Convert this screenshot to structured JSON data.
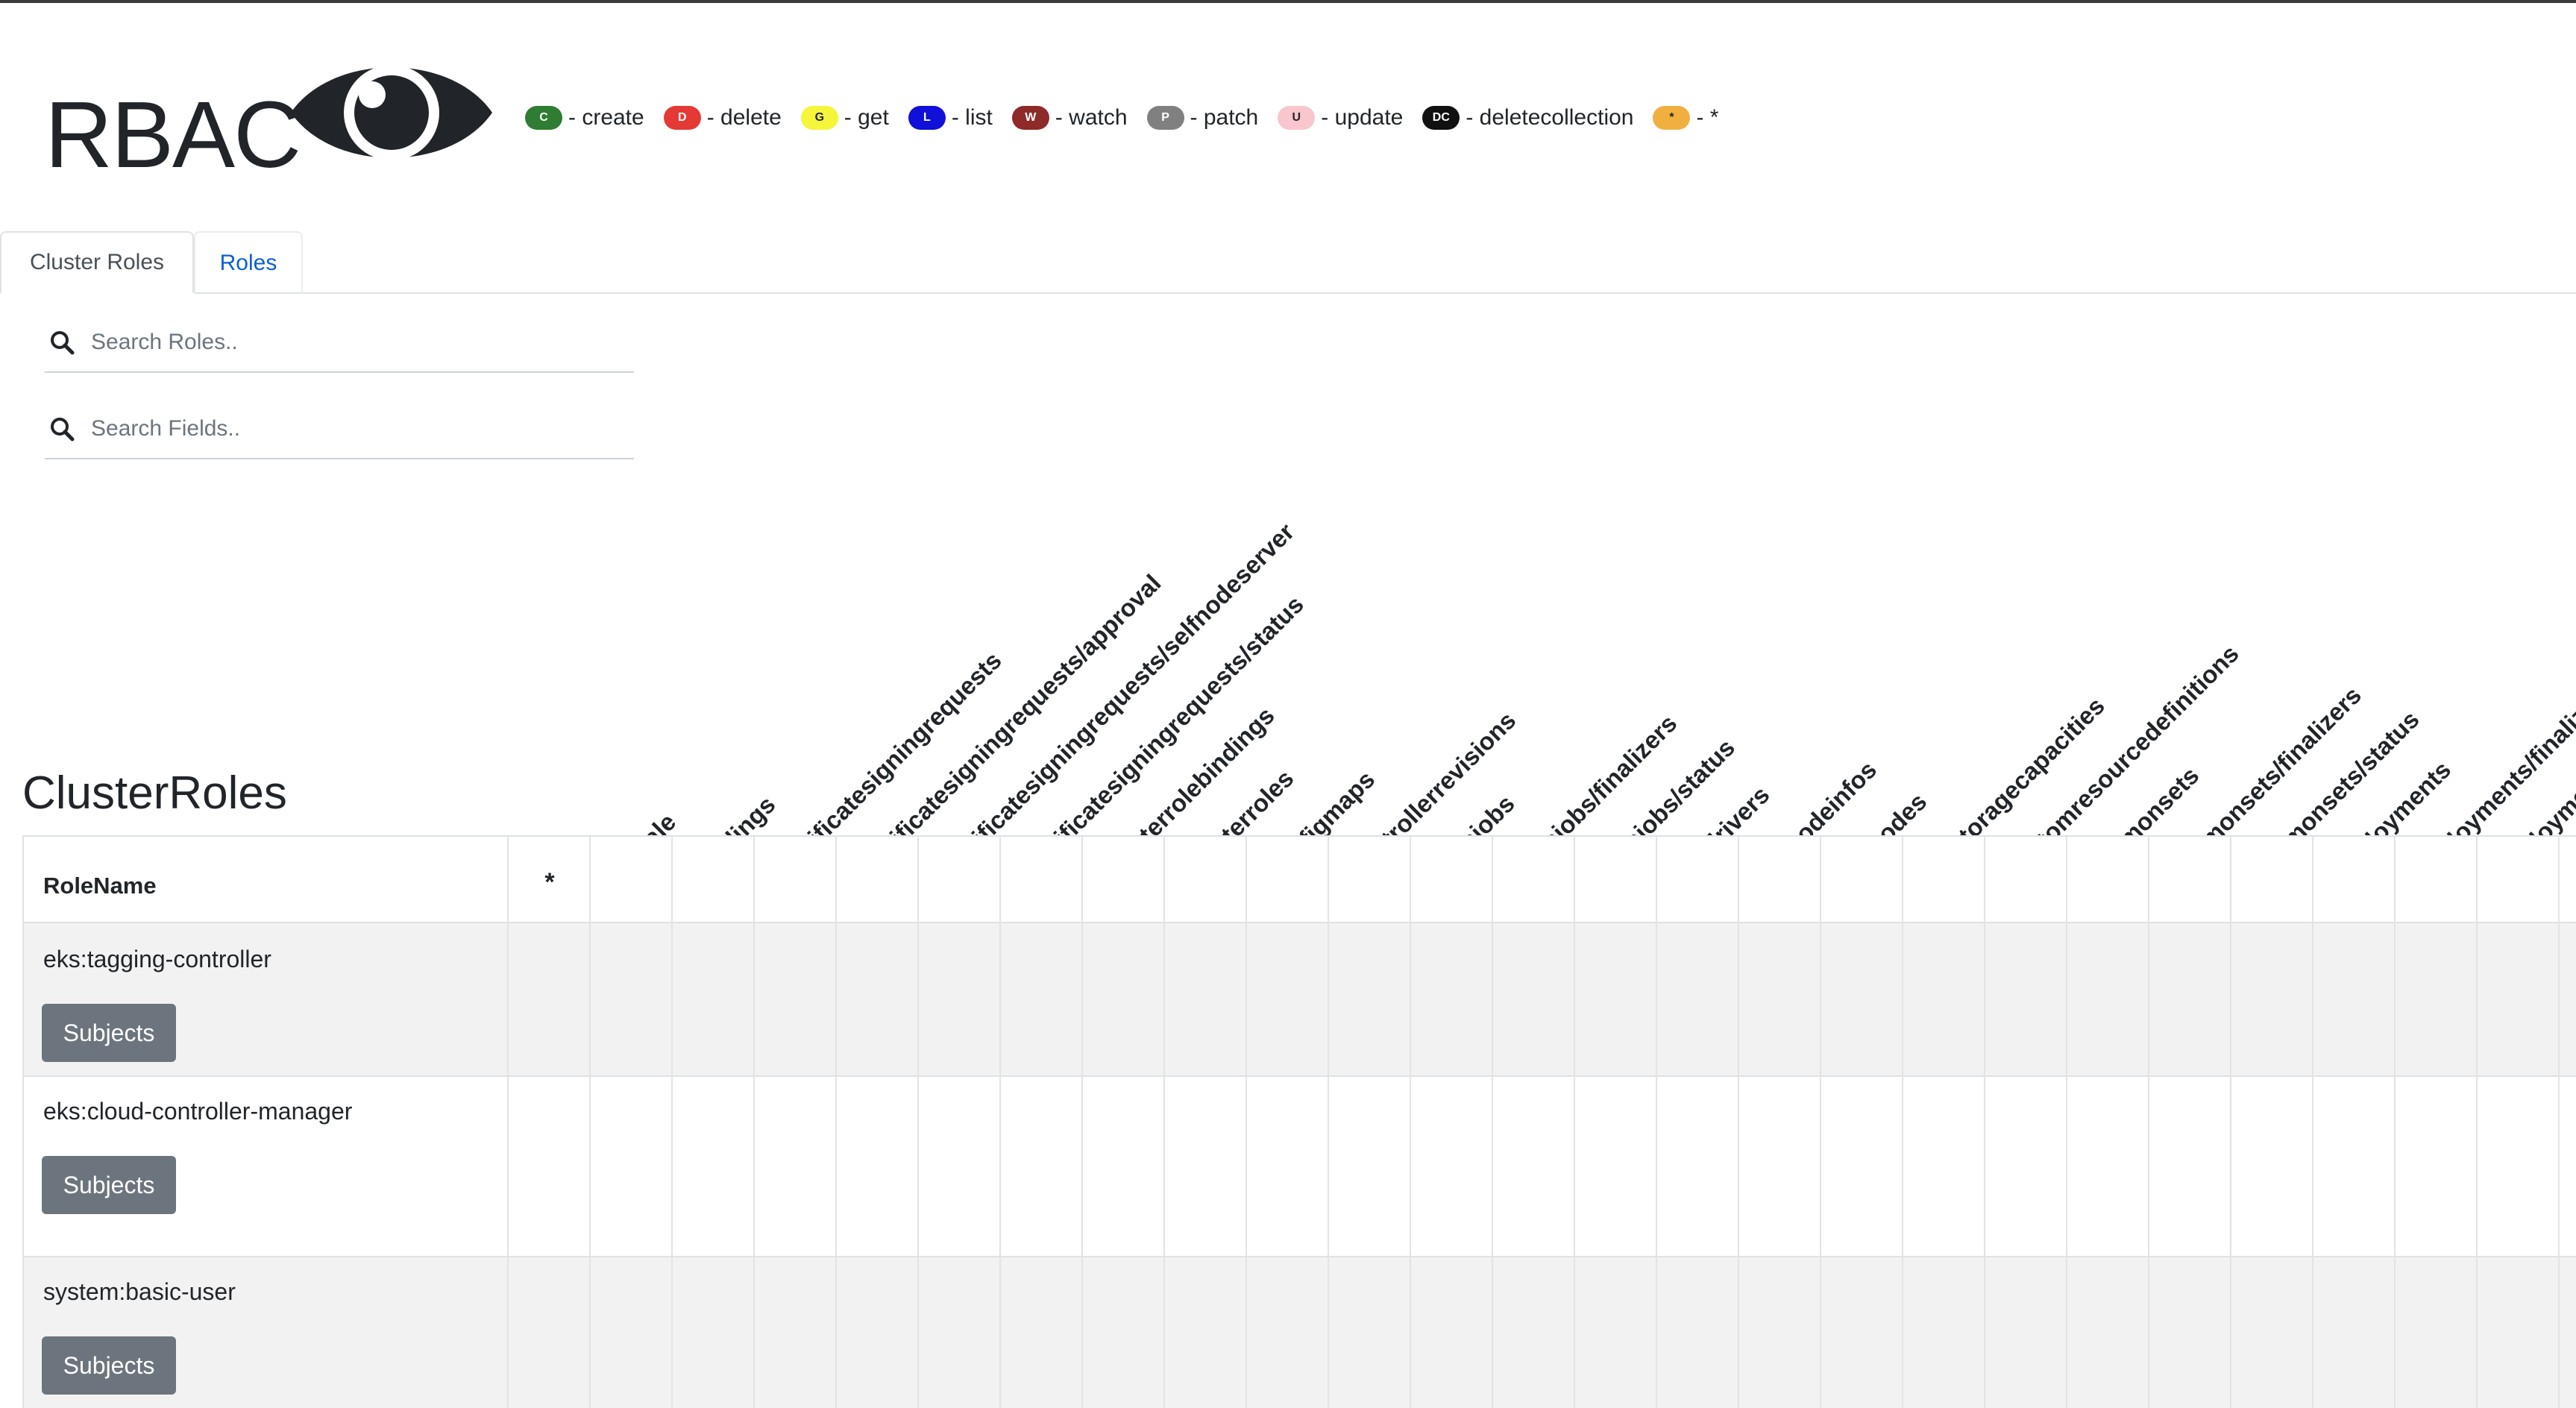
{
  "app": {
    "title": "RBAC"
  },
  "legend": [
    {
      "code": "C",
      "label": "- create",
      "bg": "#2e7d32",
      "fg": "#ffffff"
    },
    {
      "code": "D",
      "label": "- delete",
      "bg": "#e53935",
      "fg": "#ffffff"
    },
    {
      "code": "G",
      "label": "- get",
      "bg": "#f5f53a",
      "fg": "#212529"
    },
    {
      "code": "L",
      "label": "- list",
      "bg": "#1010d8",
      "fg": "#ffffff"
    },
    {
      "code": "W",
      "label": "- watch",
      "bg": "#8e2a2a",
      "fg": "#ffffff"
    },
    {
      "code": "P",
      "label": "- patch",
      "bg": "#808080",
      "fg": "#ffffff"
    },
    {
      "code": "U",
      "label": "- update",
      "bg": "#f8c6cc",
      "fg": "#212529"
    },
    {
      "code": "DC",
      "label": "- deletecollection",
      "bg": "#111111",
      "fg": "#ffffff"
    },
    {
      "code": "*",
      "label": "- *",
      "bg": "#f0b040",
      "fg": "#212529"
    }
  ],
  "tabs": [
    {
      "label": "Cluster Roles",
      "active": true
    },
    {
      "label": "Roles",
      "active": false
    }
  ],
  "search": {
    "roles_placeholder": "Search Roles..",
    "fields_placeholder": "Search Fields.."
  },
  "section": {
    "title": "ClusterRoles"
  },
  "table": {
    "rolename_header": "RoleName",
    "star_header": "*",
    "columns": [
      "*/scale",
      "bindings",
      "certificatesigningrequests",
      "certificatesigningrequests/approval",
      "certificatesigningrequests/selfnodeserver",
      "certificatesigningrequests/status",
      "clusterrolebindings",
      "clusterroles",
      "configmaps",
      "controllerrevisions",
      "cronjobs",
      "cronjobs/finalizers",
      "cronjobs/status",
      "csidrivers",
      "csinodeinfos",
      "csinodes",
      "csistoragecapacities",
      "customresourcedefinitions",
      "daemonsets",
      "daemonsets/finalizers",
      "daemonsets/status",
      "deployments",
      "deployments/finalizers",
      "deployments/scale"
    ],
    "rows": [
      {
        "name": "eks:tagging-controller",
        "button": "Subjects"
      },
      {
        "name": "eks:cloud-controller-manager",
        "button": "Subjects"
      },
      {
        "name": "system:basic-user",
        "button": "Subjects"
      }
    ]
  }
}
